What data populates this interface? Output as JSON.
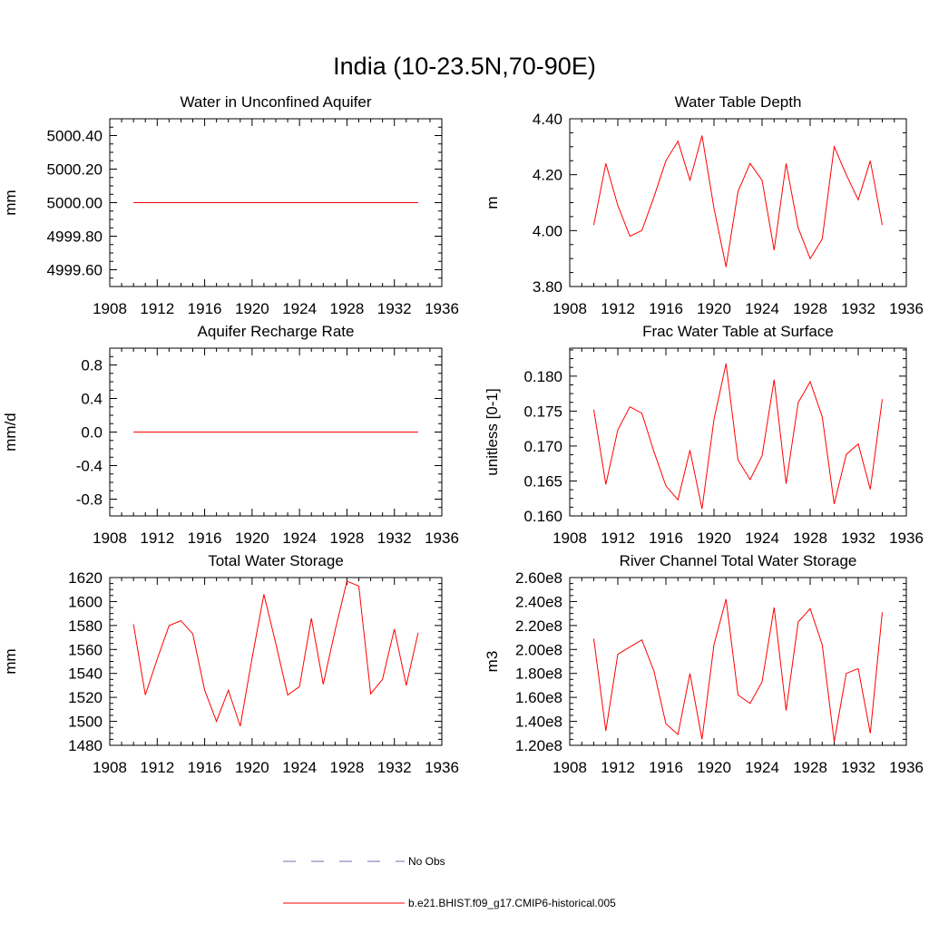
{
  "figure": {
    "title": "India (10-23.5N,70-90E)",
    "line_color": "#ff0000",
    "obs_color": "#6f6fb0"
  },
  "legend": [
    {
      "label": "No Obs",
      "style": "dashed",
      "color": "#6f6fb0"
    },
    {
      "label": "b.e21.BHIST.f09_g17.CMIP6-historical.005",
      "style": "solid",
      "color": "#ff0000"
    }
  ],
  "chart_data": [
    {
      "type": "line",
      "title": "Water in Unconfined Aquifer",
      "ylabel": "mm",
      "xlim": [
        1908,
        1936
      ],
      "ylim": [
        4999.5,
        5000.5
      ],
      "xticks": [
        1908,
        1912,
        1916,
        1920,
        1924,
        1928,
        1932,
        1936
      ],
      "yticks": [
        4999.6,
        4999.8,
        5000.0,
        5000.2,
        5000.4
      ],
      "ytick_labels": [
        "4999.60",
        "4999.80",
        "5000.00",
        "5000.20",
        "5000.40"
      ],
      "x": [
        1910,
        1911,
        1912,
        1913,
        1914,
        1915,
        1916,
        1917,
        1918,
        1919,
        1920,
        1921,
        1922,
        1923,
        1924,
        1925,
        1926,
        1927,
        1928,
        1929,
        1930,
        1931,
        1932,
        1933,
        1934
      ],
      "series": [
        {
          "name": "b.e21.BHIST.f09_g17.CMIP6-historical.005",
          "values": [
            5000.0,
            5000.0,
            5000.0,
            5000.0,
            5000.0,
            5000.0,
            5000.0,
            5000.0,
            5000.0,
            5000.0,
            5000.0,
            5000.0,
            5000.0,
            5000.0,
            5000.0,
            5000.0,
            5000.0,
            5000.0,
            5000.0,
            5000.0,
            5000.0,
            5000.0,
            5000.0,
            5000.0,
            5000.0
          ]
        }
      ]
    },
    {
      "type": "line",
      "title": "Water Table Depth",
      "ylabel": "m",
      "xlim": [
        1908,
        1936
      ],
      "ylim": [
        3.8,
        4.4
      ],
      "xticks": [
        1908,
        1912,
        1916,
        1920,
        1924,
        1928,
        1932,
        1936
      ],
      "yticks": [
        3.8,
        4.0,
        4.2,
        4.4
      ],
      "ytick_labels": [
        "3.80",
        "4.00",
        "4.20",
        "4.40"
      ],
      "x": [
        1910,
        1911,
        1912,
        1913,
        1914,
        1915,
        1916,
        1917,
        1918,
        1919,
        1920,
        1921,
        1922,
        1923,
        1924,
        1925,
        1926,
        1927,
        1928,
        1929,
        1930,
        1931,
        1932,
        1933,
        1934
      ],
      "series": [
        {
          "name": "b.e21.BHIST.f09_g17.CMIP6-historical.005",
          "values": [
            4.02,
            4.24,
            4.09,
            3.98,
            4.0,
            4.12,
            4.25,
            4.32,
            4.18,
            4.34,
            4.08,
            3.87,
            4.14,
            4.24,
            4.18,
            3.93,
            4.24,
            4.01,
            3.9,
            3.97,
            4.3,
            4.2,
            4.11,
            4.25,
            4.02
          ]
        }
      ]
    },
    {
      "type": "line",
      "title": "Aquifer Recharge Rate",
      "ylabel": "mm/d",
      "xlim": [
        1908,
        1936
      ],
      "ylim": [
        -1.0,
        1.0
      ],
      "xticks": [
        1908,
        1912,
        1916,
        1920,
        1924,
        1928,
        1932,
        1936
      ],
      "yticks": [
        -0.8,
        -0.4,
        0.0,
        0.4,
        0.8
      ],
      "ytick_labels": [
        "-0.8",
        "-0.4",
        "0.0",
        "0.4",
        "0.8"
      ],
      "x": [
        1910,
        1911,
        1912,
        1913,
        1914,
        1915,
        1916,
        1917,
        1918,
        1919,
        1920,
        1921,
        1922,
        1923,
        1924,
        1925,
        1926,
        1927,
        1928,
        1929,
        1930,
        1931,
        1932,
        1933,
        1934
      ],
      "series": [
        {
          "name": "b.e21.BHIST.f09_g17.CMIP6-historical.005",
          "values": [
            0.0,
            0.0,
            0.0,
            0.0,
            0.0,
            0.0,
            0.0,
            0.0,
            0.0,
            0.0,
            0.0,
            0.0,
            0.0,
            0.0,
            0.0,
            0.0,
            0.0,
            0.0,
            0.0,
            0.0,
            0.0,
            0.0,
            0.0,
            0.0,
            0.0
          ]
        }
      ]
    },
    {
      "type": "line",
      "title": "Frac Water Table at Surface",
      "ylabel": "unitless [0-1]",
      "xlim": [
        1908,
        1936
      ],
      "ylim": [
        0.16,
        0.184
      ],
      "xticks": [
        1908,
        1912,
        1916,
        1920,
        1924,
        1928,
        1932,
        1936
      ],
      "yticks": [
        0.16,
        0.165,
        0.17,
        0.175,
        0.18
      ],
      "ytick_labels": [
        "0.160",
        "0.165",
        "0.170",
        "0.175",
        "0.180"
      ],
      "x": [
        1910,
        1911,
        1912,
        1913,
        1914,
        1915,
        1916,
        1917,
        1918,
        1919,
        1920,
        1921,
        1922,
        1923,
        1924,
        1925,
        1926,
        1927,
        1928,
        1929,
        1930,
        1931,
        1932,
        1933,
        1934
      ],
      "series": [
        {
          "name": "b.e21.BHIST.f09_g17.CMIP6-historical.005",
          "values": [
            0.1752,
            0.1645,
            0.1723,
            0.1756,
            0.1747,
            0.1692,
            0.1643,
            0.1623,
            0.1694,
            0.161,
            0.1738,
            0.1818,
            0.168,
            0.1652,
            0.1686,
            0.1795,
            0.1646,
            0.1762,
            0.1792,
            0.1742,
            0.1617,
            0.1688,
            0.1703,
            0.1638,
            0.1767
          ]
        }
      ]
    },
    {
      "type": "line",
      "title": "Total Water Storage",
      "ylabel": "mm",
      "xlim": [
        1908,
        1936
      ],
      "ylim": [
        1480,
        1620
      ],
      "xticks": [
        1908,
        1912,
        1916,
        1920,
        1924,
        1928,
        1932,
        1936
      ],
      "yticks": [
        1480,
        1500,
        1520,
        1540,
        1560,
        1580,
        1600,
        1620
      ],
      "ytick_labels": [
        "1480",
        "1500",
        "1520",
        "1540",
        "1560",
        "1580",
        "1600",
        "1620"
      ],
      "x": [
        1910,
        1911,
        1912,
        1913,
        1914,
        1915,
        1916,
        1917,
        1918,
        1919,
        1920,
        1921,
        1922,
        1923,
        1924,
        1925,
        1926,
        1927,
        1928,
        1929,
        1930,
        1931,
        1932,
        1933,
        1934
      ],
      "series": [
        {
          "name": "b.e21.BHIST.f09_g17.CMIP6-historical.005",
          "values": [
            1581,
            1522,
            1552,
            1580,
            1584,
            1573,
            1526,
            1500,
            1526,
            1496,
            1553,
            1606,
            1565,
            1522,
            1529,
            1586,
            1531,
            1576,
            1617,
            1613,
            1523,
            1535,
            1577,
            1530,
            1574
          ]
        }
      ]
    },
    {
      "type": "line",
      "title": "River Channel Total Water Storage",
      "ylabel": "m3",
      "xlim": [
        1908,
        1936
      ],
      "ylim": [
        120000000,
        260000000
      ],
      "xticks": [
        1908,
        1912,
        1916,
        1920,
        1924,
        1928,
        1932,
        1936
      ],
      "yticks": [
        120000000,
        140000000,
        160000000,
        180000000,
        200000000,
        220000000,
        240000000,
        260000000
      ],
      "ytick_labels": [
        "1.20e8",
        "1.40e8",
        "1.60e8",
        "1.80e8",
        "2.00e8",
        "2.20e8",
        "2.40e8",
        "2.60e8"
      ],
      "x": [
        1910,
        1911,
        1912,
        1913,
        1914,
        1915,
        1916,
        1917,
        1918,
        1919,
        1920,
        1921,
        1922,
        1923,
        1924,
        1925,
        1926,
        1927,
        1928,
        1929,
        1930,
        1931,
        1932,
        1933,
        1934
      ],
      "series": [
        {
          "name": "b.e21.BHIST.f09_g17.CMIP6-historical.005",
          "values": [
            209000000,
            132000000,
            196000000,
            202000000,
            208000000,
            182000000,
            138000000,
            129000000,
            180000000,
            125000000,
            204000000,
            242000000,
            162000000,
            155000000,
            173000000,
            235000000,
            149000000,
            223000000,
            234000000,
            204000000,
            123000000,
            180000000,
            184000000,
            130000000,
            231000000
          ]
        }
      ]
    }
  ]
}
